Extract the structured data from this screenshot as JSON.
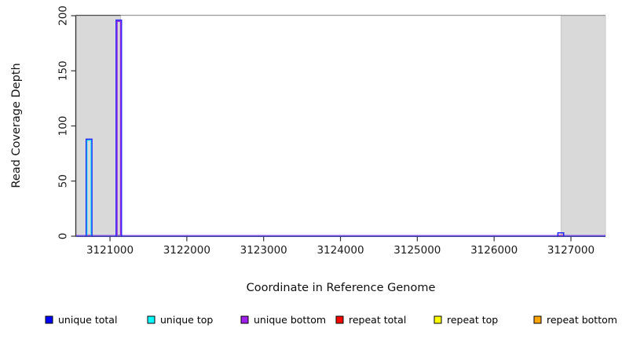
{
  "page": {
    "background": "#ffffff"
  },
  "chart_data": {
    "type": "line",
    "subtype": "read-coverage-step-plot",
    "title": "",
    "xlabel": "Coordinate in Reference Genome",
    "ylabel": "Read Coverage Depth",
    "xlim": [
      3120560,
      3127450
    ],
    "ylim": [
      0,
      200
    ],
    "xticks": [
      3121000,
      3122000,
      3123000,
      3124000,
      3125000,
      3126000,
      3127000
    ],
    "yticks": [
      0,
      50,
      100,
      150,
      200
    ],
    "grid": false,
    "legend_position": "bottom-horizontal",
    "axis_color": "#333333",
    "tick_label_color": "#1a1a1a",
    "shaded_regions": [
      {
        "name": "left-flank",
        "x0": 3120560,
        "x1": 3121140,
        "color": "#d9d9d9"
      },
      {
        "name": "right-flank",
        "x0": 3126870,
        "x1": 3127450,
        "color": "#d9d9d9"
      }
    ],
    "series": [
      {
        "name": "unique total",
        "group": "unique",
        "role": "total",
        "color": "#2222ff",
        "baseline": 0,
        "segments": [
          {
            "x0": 3120690,
            "x1": 3120765,
            "depth": 88
          },
          {
            "x0": 3121080,
            "x1": 3121150,
            "depth": 196
          },
          {
            "x0": 3126830,
            "x1": 3126905,
            "depth": 3
          }
        ]
      },
      {
        "name": "unique top",
        "group": "unique",
        "role": "top",
        "color": "#00d9ee",
        "baseline": 0,
        "segments": [
          {
            "x0": 3120690,
            "x1": 3120765,
            "depth": 88
          }
        ]
      },
      {
        "name": "unique bottom",
        "group": "unique",
        "role": "bottom",
        "color": "#8a2be2",
        "baseline": 0,
        "segments": [
          {
            "x0": 3121080,
            "x1": 3121150,
            "depth": 196
          }
        ]
      },
      {
        "name": "repeat total",
        "group": "repeat",
        "role": "total",
        "color": "#ff6666",
        "baseline": 0,
        "segments": [
          {
            "x0": 3120690,
            "x1": 3120765,
            "depth": 1
          },
          {
            "x0": 3126820,
            "x1": 3126910,
            "depth": 1
          }
        ]
      },
      {
        "name": "repeat top",
        "group": "repeat",
        "role": "top",
        "color": "#dddd33",
        "baseline": 0,
        "segments": [
          {
            "x0": 3121080,
            "x1": 3121155,
            "depth": 1
          }
        ]
      },
      {
        "name": "repeat bottom",
        "group": "repeat",
        "role": "bottom",
        "color": "#ffa500",
        "baseline": 0,
        "segments": []
      }
    ],
    "legend": [
      {
        "label": "unique total",
        "color": "#0000ff"
      },
      {
        "label": "unique top",
        "color": "#00ffff"
      },
      {
        "label": "unique bottom",
        "color": "#a020f0"
      },
      {
        "label": "repeat total",
        "color": "#ff0000"
      },
      {
        "label": "repeat top",
        "color": "#ffff00"
      },
      {
        "label": "repeat bottom",
        "color": "#ffa500"
      }
    ]
  }
}
